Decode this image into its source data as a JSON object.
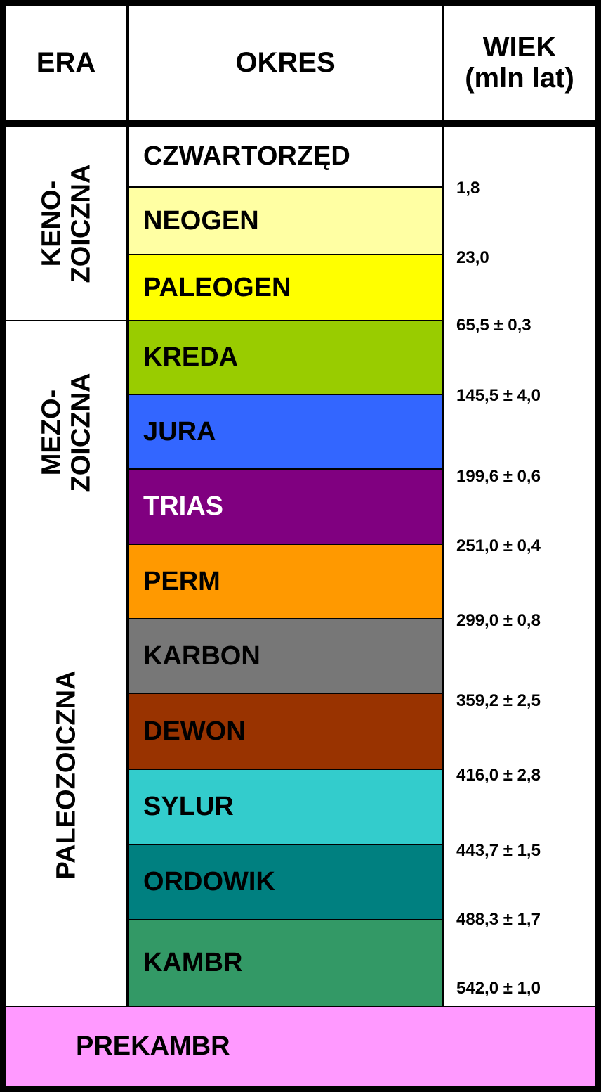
{
  "header": {
    "era": "ERA",
    "okres": "OKRES",
    "wiek": [
      "WIEK",
      "(mln lat)"
    ]
  },
  "eras": [
    {
      "lines": [
        "KENO-",
        "ZOICZNA"
      ]
    },
    {
      "lines": [
        "MEZO-",
        "ZOICZNA"
      ]
    },
    {
      "lines": [
        "PALEOZOICZNA"
      ]
    }
  ],
  "periods": [
    {
      "name": "CZWARTORZĘD",
      "color": "#ffffff",
      "text_color": "#000000"
    },
    {
      "name": "NEOGEN",
      "color": "#ffffa3",
      "text_color": "#000000"
    },
    {
      "name": "PALEOGEN",
      "color": "#ffff00",
      "text_color": "#000000"
    },
    {
      "name": "KREDA",
      "color": "#99cc00",
      "text_color": "#000000"
    },
    {
      "name": "JURA",
      "color": "#3366ff",
      "text_color": "#000000"
    },
    {
      "name": "TRIAS",
      "color": "#800080",
      "text_color": "#ffffff"
    },
    {
      "name": "PERM",
      "color": "#ff9900",
      "text_color": "#000000"
    },
    {
      "name": "KARBON",
      "color": "#777777",
      "text_color": "#000000"
    },
    {
      "name": "DEWON",
      "color": "#993300",
      "text_color": "#000000"
    },
    {
      "name": "SYLUR",
      "color": "#33cccc",
      "text_color": "#000000"
    },
    {
      "name": "ORDOWIK",
      "color": "#008080",
      "text_color": "#000000"
    },
    {
      "name": "KAMBR",
      "color": "#339966",
      "text_color": "#000000"
    }
  ],
  "ages": [
    "1,8",
    "23,0",
    "65,5 ± 0,3",
    "145,5 ± 4,0",
    "199,6 ± 0,6",
    "251,0 ± 0,4",
    "299,0 ± 0,8",
    "359,2 ± 2,5",
    "416,0 ± 2,8",
    "443,7 ± 1,5",
    "488,3 ± 1,7",
    "542,0 ± 1,0"
  ],
  "prekambr": {
    "name": "PREKAMBR",
    "color": "#ff99ff"
  }
}
